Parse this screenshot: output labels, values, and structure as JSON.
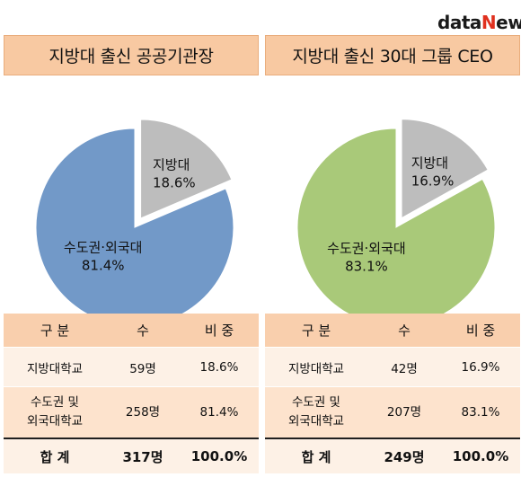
{
  "logo": {
    "part1": "data",
    "part2": "N",
    "part3": "ews"
  },
  "colors": {
    "left_main": "#7299c8",
    "right_main": "#a9c979",
    "minor": "#bdbdbd",
    "title_bg": "#f8c9a2"
  },
  "panels": [
    {
      "title": "지방대 출신 공공기관장",
      "chart_data": {
        "type": "pie",
        "title": "지방대 출신 공공기관장",
        "slices": [
          {
            "label": "지방대",
            "value": 18.6,
            "value_label": "18.6%",
            "color": "#bdbdbd",
            "exploded": true
          },
          {
            "label": "수도권·외국대",
            "value": 81.4,
            "value_label": "81.4%",
            "color": "#7299c8",
            "exploded": false
          }
        ]
      },
      "table": {
        "headers": [
          "구  분",
          "수",
          "비  중"
        ],
        "rows": [
          {
            "label_lines": [
              "지방대학교"
            ],
            "count": "59명",
            "ratio": "18.6%"
          },
          {
            "label_lines": [
              "수도권 및",
              "외국대학교"
            ],
            "count": "258명",
            "ratio": "81.4%"
          }
        ],
        "total": {
          "label": "합  계",
          "count": "317명",
          "ratio": "100.0%"
        }
      }
    },
    {
      "title": "지방대 출신 30대 그룹 CEO",
      "chart_data": {
        "type": "pie",
        "title": "지방대 출신 30대 그룹 CEO",
        "slices": [
          {
            "label": "지방대",
            "value": 16.9,
            "value_label": "16.9%",
            "color": "#bdbdbd",
            "exploded": true
          },
          {
            "label": "수도권·외국대",
            "value": 83.1,
            "value_label": "83.1%",
            "color": "#a9c979",
            "exploded": false
          }
        ]
      },
      "table": {
        "headers": [
          "구  분",
          "수",
          "비  중"
        ],
        "rows": [
          {
            "label_lines": [
              "지방대학교"
            ],
            "count": "42명",
            "ratio": "16.9%"
          },
          {
            "label_lines": [
              "수도권 및",
              "외국대학교"
            ],
            "count": "207명",
            "ratio": "83.1%"
          }
        ],
        "total": {
          "label": "합  계",
          "count": "249명",
          "ratio": "100.0%"
        }
      }
    }
  ]
}
